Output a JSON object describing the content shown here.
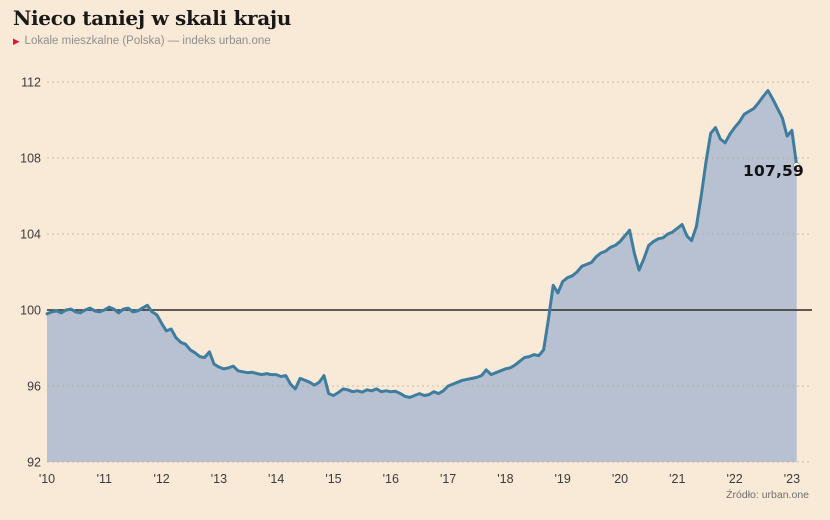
{
  "page": {
    "background": "#f9e9d7"
  },
  "header": {
    "title": "Nieco taniej w skali kraju",
    "legend_marker": "▶",
    "legend_label": "Lokale mieszkalne (Polska) — indeks urban.one"
  },
  "annotation": {
    "last_value_label": "107,59"
  },
  "footer": {
    "source": "Źródło: urban.one"
  },
  "chart_data": {
    "type": "area",
    "title": "Nieco taniej w skali kraju",
    "subtitle": "Lokale mieszkalne (Polska) — indeks urban.one",
    "xlabel": "",
    "ylabel": "indeks urban.one",
    "x_start": "2010-01",
    "frequency": "monthly",
    "x_tick_labels": [
      "'10",
      "'11",
      "'12",
      "'13",
      "'14",
      "'15",
      "'16",
      "'17",
      "'18",
      "'19",
      "'20",
      "'21",
      "'22",
      "'23"
    ],
    "y_ticks": [
      92,
      96,
      100,
      104,
      108,
      112
    ],
    "ylim": [
      92,
      112.5
    ],
    "baseline_value": 100,
    "grid": "horizontal-dashed",
    "legend_position": "top-left-subtitle",
    "last_point": {
      "x": "2023-02",
      "value": 107.59,
      "label": "107,59"
    },
    "series": [
      {
        "name": "Lokale mieszkalne (Polska) — indeks urban.one",
        "values": [
          99.8,
          99.9,
          99.95,
          99.85,
          100.0,
          100.05,
          99.9,
          99.85,
          100.0,
          100.1,
          99.95,
          99.9,
          100.0,
          100.15,
          100.05,
          99.85,
          100.05,
          100.1,
          99.9,
          99.95,
          100.1,
          100.25,
          99.9,
          99.75,
          99.3,
          98.9,
          99.0,
          98.55,
          98.3,
          98.2,
          97.9,
          97.75,
          97.55,
          97.5,
          97.8,
          97.15,
          97.0,
          96.9,
          96.95,
          97.05,
          96.8,
          96.75,
          96.7,
          96.72,
          96.65,
          96.6,
          96.65,
          96.6,
          96.6,
          96.5,
          96.55,
          96.1,
          95.85,
          96.4,
          96.3,
          96.2,
          96.05,
          96.2,
          96.55,
          95.6,
          95.5,
          95.65,
          95.85,
          95.8,
          95.7,
          95.75,
          95.68,
          95.8,
          95.75,
          95.85,
          95.7,
          95.75,
          95.7,
          95.72,
          95.6,
          95.45,
          95.4,
          95.5,
          95.6,
          95.5,
          95.55,
          95.7,
          95.6,
          95.75,
          96.0,
          96.1,
          96.2,
          96.3,
          96.35,
          96.4,
          96.45,
          96.55,
          96.85,
          96.6,
          96.7,
          96.8,
          96.9,
          96.95,
          97.1,
          97.3,
          97.5,
          97.55,
          97.65,
          97.6,
          97.9,
          99.5,
          101.3,
          100.9,
          101.5,
          101.7,
          101.8,
          102.0,
          102.3,
          102.4,
          102.5,
          102.8,
          103.0,
          103.1,
          103.3,
          103.4,
          103.6,
          103.9,
          104.2,
          103.0,
          102.1,
          102.7,
          103.4,
          103.6,
          103.75,
          103.8,
          104.0,
          104.1,
          104.3,
          104.5,
          103.9,
          103.65,
          104.4,
          106.0,
          107.8,
          109.3,
          109.6,
          109.0,
          108.8,
          109.25,
          109.6,
          109.9,
          110.3,
          110.45,
          110.6,
          110.9,
          111.25,
          111.55,
          111.1,
          110.6,
          110.1,
          109.15,
          109.45,
          107.59
        ]
      }
    ],
    "colors": {
      "background": "#f9e9d7",
      "line": "#3e7d9e",
      "fill": "#b8c1d2",
      "baseline": "#2e2c28",
      "grid": "#b5aa9d",
      "accent_red": "#e8112d",
      "tick_text": "#3c3c3c",
      "end_dot_fill": "#fffdf8"
    }
  }
}
